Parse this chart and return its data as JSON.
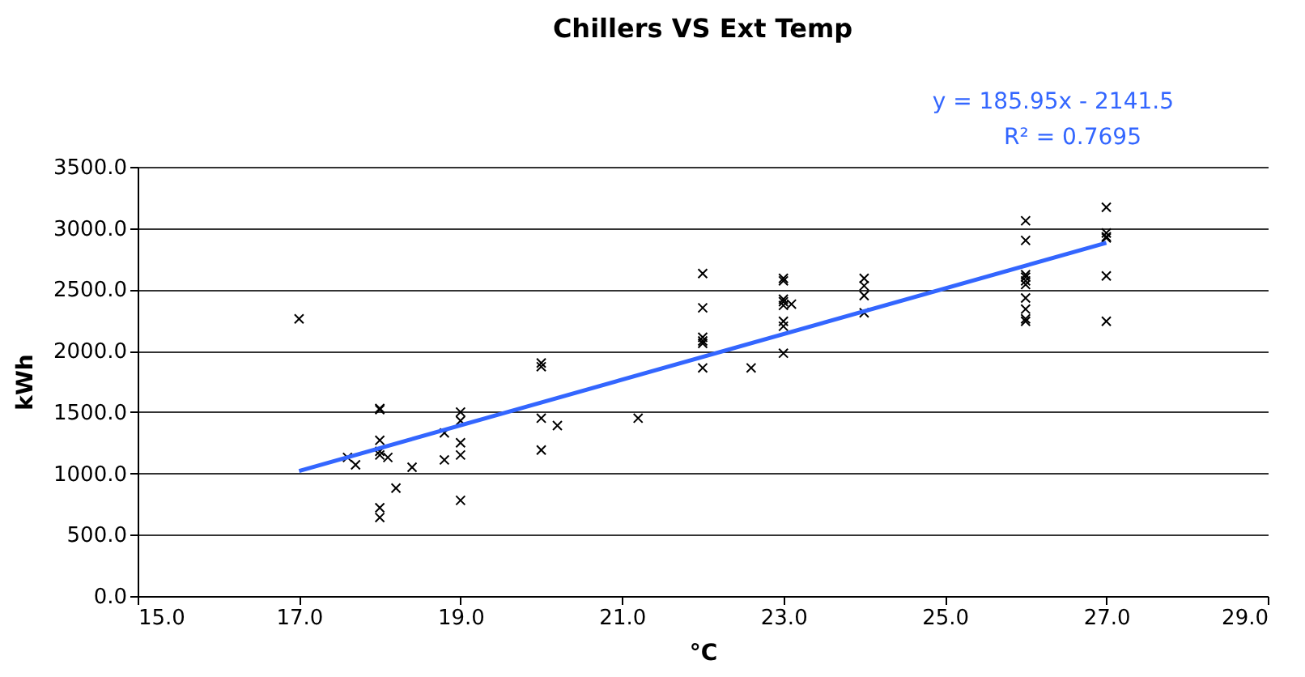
{
  "chart_data": {
    "type": "scatter",
    "title": "Chillers VS Ext Temp",
    "xlabel": "°C",
    "ylabel": "kWh",
    "xlim": [
      15,
      29
    ],
    "xticks": [
      {
        "value": 15,
        "label": "15.0"
      },
      {
        "value": 17,
        "label": "17.0"
      },
      {
        "value": 19,
        "label": "19.0"
      },
      {
        "value": 21,
        "label": "21.0"
      },
      {
        "value": 23,
        "label": "23.0"
      },
      {
        "value": 25,
        "label": "25.0"
      },
      {
        "value": 27,
        "label": "27.0"
      },
      {
        "value": 29,
        "label": "29.0"
      }
    ],
    "ylim": [
      0,
      3500
    ],
    "yticks": [
      {
        "value": 0,
        "label": "0.0"
      },
      {
        "value": 500,
        "label": "500.0"
      },
      {
        "value": 1000,
        "label": "1000.0"
      },
      {
        "value": 1500,
        "label": "1500.0"
      },
      {
        "value": 2000,
        "label": "2000.0"
      },
      {
        "value": 2500,
        "label": "2500.0"
      },
      {
        "value": 3000,
        "label": "3000.0"
      },
      {
        "value": 3500,
        "label": "3500.0"
      }
    ],
    "grid": "y",
    "annotations": [
      "y = 185.95x - 2141.5",
      "R² = 0.7695"
    ],
    "series": [
      {
        "marker": "cross",
        "color": "#000000",
        "x": [
          17.0,
          17.6,
          17.7,
          18.0,
          18.0,
          18.0,
          18.0,
          18.0,
          18.0,
          18.0,
          18.1,
          18.2,
          18.4,
          18.8,
          18.8,
          19.0,
          19.0,
          19.0,
          19.0,
          19.0,
          20.0,
          20.0,
          20.0,
          20.0,
          20.2,
          21.2,
          22.0,
          22.0,
          22.0,
          22.0,
          22.0,
          22.0,
          22.6,
          23.0,
          23.0,
          23.0,
          23.0,
          23.0,
          23.0,
          23.0,
          23.0,
          23.1,
          24.0,
          24.0,
          24.0,
          24.0,
          26.0,
          26.0,
          26.0,
          26.0,
          26.0,
          26.0,
          26.0,
          26.0,
          26.0,
          26.0,
          27.0,
          27.0,
          27.0,
          27.0,
          27.0,
          27.0
        ],
        "values": [
          2260,
          1130,
          1070,
          1530,
          1520,
          1270,
          1180,
          1150,
          720,
          640,
          1130,
          880,
          1050,
          1330,
          1110,
          1500,
          1430,
          1250,
          1150,
          780,
          1900,
          1870,
          1450,
          1190,
          1390,
          1450,
          2630,
          2350,
          2110,
          2080,
          2060,
          1860,
          1860,
          2590,
          2570,
          2420,
          2400,
          2370,
          2240,
          2200,
          1980,
          2380,
          2590,
          2530,
          2450,
          2310,
          3060,
          2900,
          2620,
          2600,
          2570,
          2540,
          2430,
          2340,
          2260,
          2240,
          3170,
          2960,
          2930,
          2920,
          2610,
          2240
        ]
      },
      {
        "type": "line",
        "color": "#3366ff",
        "x": [
          17,
          27
        ],
        "values": [
          1020,
          2880
        ],
        "line_style": "solid"
      }
    ]
  }
}
